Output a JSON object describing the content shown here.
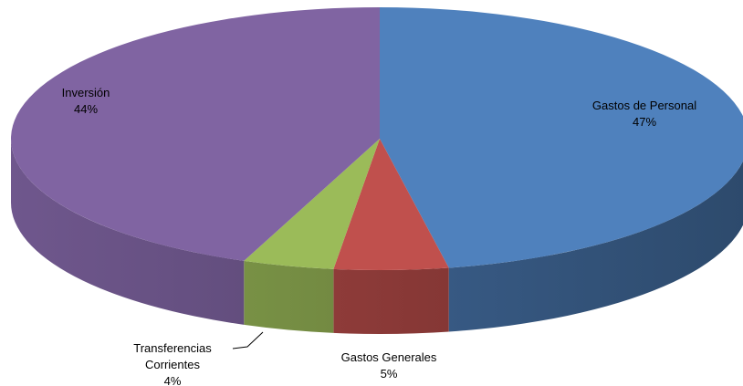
{
  "chart_data": {
    "type": "pie",
    "title": "",
    "categories": [
      "Gastos de Personal",
      "Gastos Generales",
      "Transferencias Corrientes",
      "Inversión"
    ],
    "values": [
      47,
      5,
      4,
      44
    ],
    "labels": [
      {
        "name_lines": [
          "Gastos de Personal"
        ],
        "pct": "47%"
      },
      {
        "name_lines": [
          "Gastos Generales"
        ],
        "pct": "5%"
      },
      {
        "name_lines": [
          "Transferencias",
          "Corrientes"
        ],
        "pct": "4%"
      },
      {
        "name_lines": [
          "Inversión"
        ],
        "pct": "44%"
      }
    ],
    "colors": [
      "#4F81BD",
      "#C0504D",
      "#9BBB59",
      "#8064A2"
    ],
    "style": "3d-exploded-none",
    "legend": "none"
  }
}
